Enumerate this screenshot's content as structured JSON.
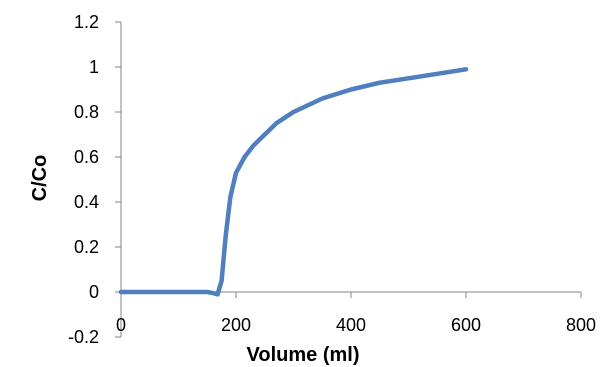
{
  "chart_data": {
    "type": "line",
    "title": "",
    "xlabel": "Volume (ml)",
    "ylabel": "C/Co",
    "xlim": [
      0,
      800
    ],
    "ylim": [
      -0.2,
      1.2
    ],
    "x_ticks": [
      0,
      200,
      400,
      600,
      800
    ],
    "y_ticks": [
      -0.2,
      0,
      0.2,
      0.4,
      0.6,
      0.8,
      1,
      1.2
    ],
    "x_tick_labels": [
      "0",
      "200",
      "400",
      "600",
      "800"
    ],
    "y_tick_labels": [
      "-0.2",
      "0",
      "0.2",
      "0.4",
      "0.6",
      "0.8",
      "1",
      "1.2"
    ],
    "grid": false,
    "legend": "none",
    "series": [
      {
        "color": "#4F7FBE",
        "x": [
          0,
          50,
          100,
          150,
          160,
          168,
          175,
          182,
          190,
          200,
          215,
          230,
          250,
          270,
          300,
          350,
          400,
          450,
          500,
          550,
          600
        ],
        "y": [
          0,
          0,
          0,
          0,
          -0.005,
          -0.01,
          0.05,
          0.25,
          0.42,
          0.53,
          0.6,
          0.65,
          0.7,
          0.75,
          0.8,
          0.86,
          0.9,
          0.93,
          0.95,
          0.97,
          0.99
        ]
      }
    ]
  }
}
